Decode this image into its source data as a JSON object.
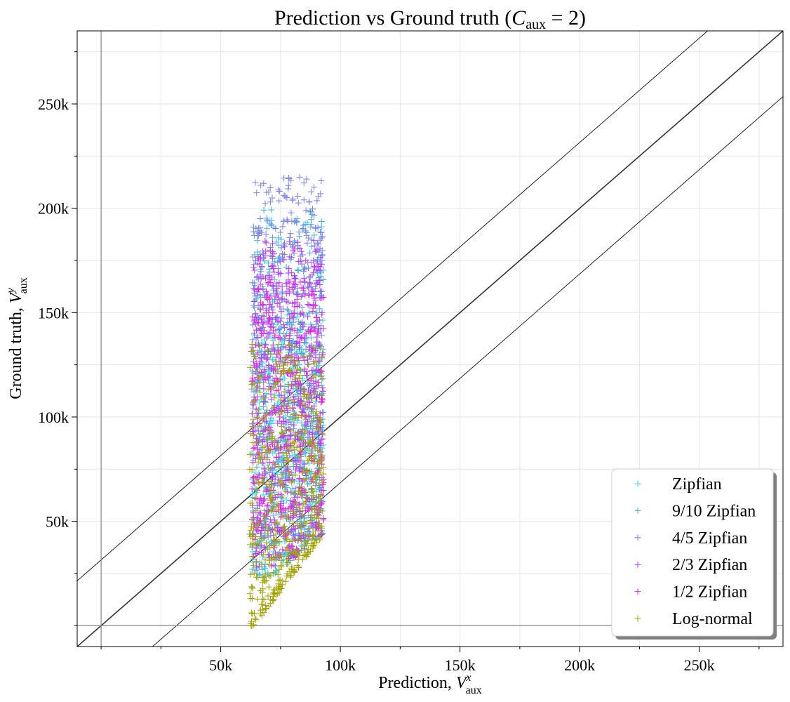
{
  "chart_data": {
    "type": "scatter",
    "title": "Prediction vs Ground truth (",
    "title_math": {
      "base": "C",
      "sub": "aux",
      "rest": " = 2)"
    },
    "xlabel": {
      "text": "Prediction,  ",
      "var": "V",
      "sup": "x",
      "sub": "aux"
    },
    "ylabel": {
      "text": "Ground truth,  ",
      "var": "V",
      "sup": "y",
      "sub": "aux"
    },
    "xlim": [
      -10000,
      285000
    ],
    "ylim": [
      -10000,
      285000
    ],
    "xticks": [
      50000,
      100000,
      150000,
      200000,
      250000
    ],
    "xtick_labels": [
      "50k",
      "100k",
      "150k",
      "200k",
      "250k"
    ],
    "yticks": [
      50000,
      100000,
      150000,
      200000,
      250000
    ],
    "ytick_labels": [
      "50k",
      "100k",
      "150k",
      "200k",
      "250k"
    ],
    "reference_lines": [
      {
        "intercept": 0,
        "slope": 1,
        "style": "main"
      },
      {
        "intercept": 31500,
        "slope": 1,
        "style": "band"
      },
      {
        "intercept": -31500,
        "slope": 1,
        "style": "band"
      }
    ],
    "marker": "+",
    "grid": true,
    "legend_position": "bottom-right",
    "series": [
      {
        "name": "Zipfian",
        "color": "#2ee0d6",
        "x_range": [
          63000,
          93000
        ],
        "y_range": [
          22000,
          150000
        ]
      },
      {
        "name": "9/10 Zipfian",
        "color": "#3fb3e3",
        "x_range": [
          63000,
          93000
        ],
        "y_range": [
          24000,
          200000
        ]
      },
      {
        "name": "4/5 Zipfian",
        "color": "#7b7ff0",
        "x_range": [
          63000,
          93000
        ],
        "y_range": [
          26000,
          215000
        ]
      },
      {
        "name": "2/3 Zipfian",
        "color": "#bb33ff",
        "x_range": [
          63000,
          93000
        ],
        "y_range": [
          28000,
          185000
        ]
      },
      {
        "name": "1/2 Zipfian",
        "color": "#e324e6",
        "x_range": [
          63000,
          93000
        ],
        "y_range": [
          28000,
          165000
        ]
      },
      {
        "name": "Log-normal",
        "color": "#a3a300",
        "x_range": [
          62000,
          93000
        ],
        "y_range": [
          0,
          135000
        ]
      }
    ]
  }
}
